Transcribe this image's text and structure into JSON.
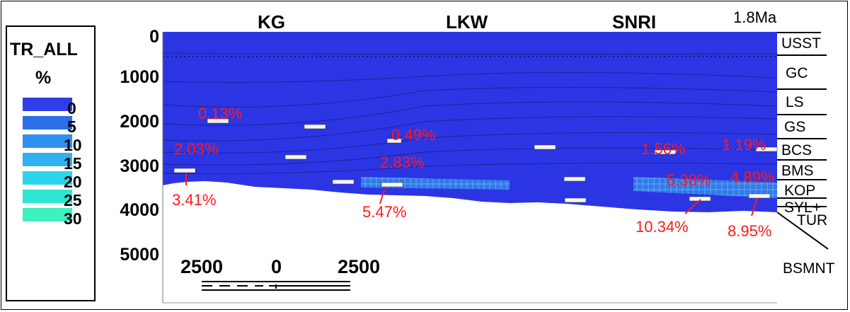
{
  "legend": {
    "title": "TR_ALL",
    "unit": "%",
    "items": [
      {
        "label": "0",
        "color": "#2f3ee8"
      },
      {
        "label": "5",
        "color": "#2a6fe8"
      },
      {
        "label": "10",
        "color": "#2f8ff0"
      },
      {
        "label": "15",
        "color": "#2fb2ee"
      },
      {
        "label": "20",
        "color": "#2fd3ec"
      },
      {
        "label": "25",
        "color": "#2fe6d4"
      },
      {
        "label": "30",
        "color": "#3ff0c0"
      }
    ]
  },
  "depth_axis": [
    "0",
    "1000",
    "2000",
    "3000",
    "4000",
    "5000"
  ],
  "wells": [
    "KG",
    "LKW",
    "SNRI"
  ],
  "age": "1.8Ma",
  "formations": [
    "USST",
    "GC",
    "LS",
    "GS",
    "BCS",
    "BMS",
    "KOP",
    "SYL+",
    "TUR",
    "BSMNT"
  ],
  "percentages": [
    "0.13%",
    "2.03%",
    "3.41%",
    "0.49%",
    "2.83%",
    "5.47%",
    "1.56%",
    "1.19%",
    "5.38%",
    "4.89%",
    "10.34%",
    "8.95%"
  ],
  "scale_bar": {
    "left": "2500",
    "middle": "0",
    "right": "2500"
  },
  "colors": {
    "section_fill": "#2c35e4",
    "highlight": "#2f79e8",
    "text_red": "#ff1a1a"
  }
}
